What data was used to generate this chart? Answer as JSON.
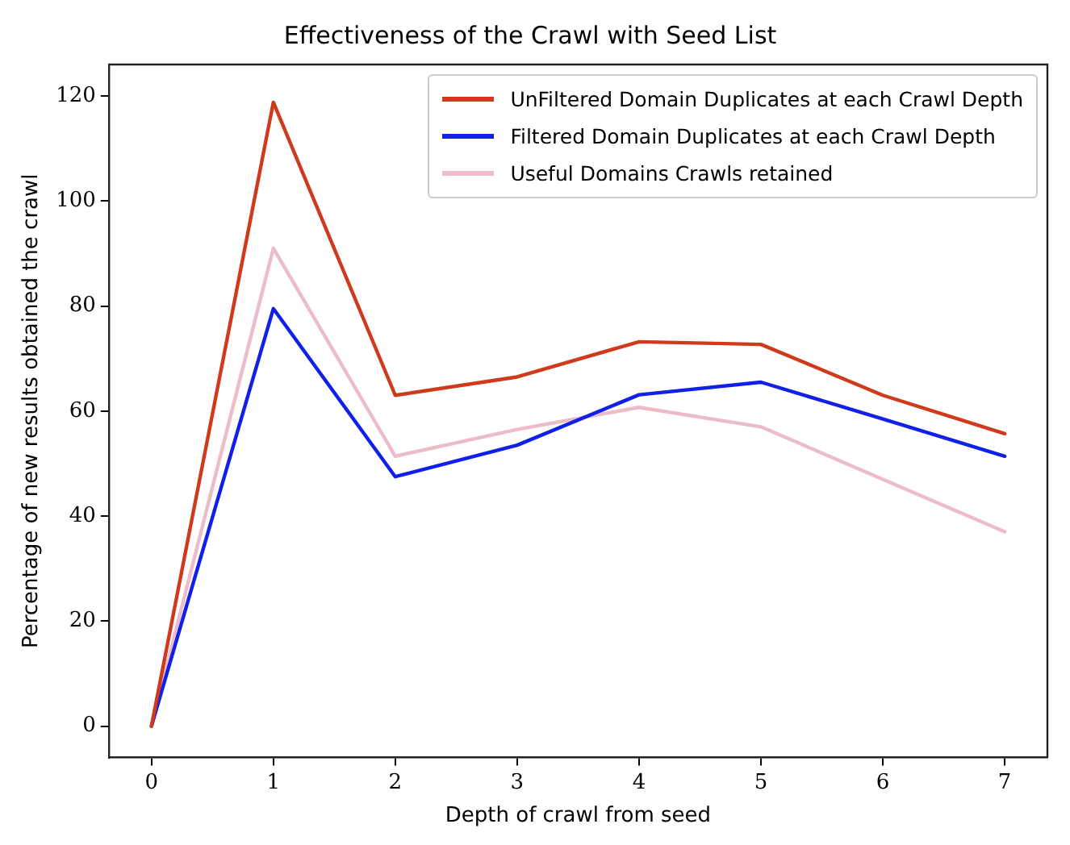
{
  "chart_data": {
    "type": "line",
    "title": "Effectiveness of the Crawl with Seed List",
    "xlabel": "Depth of crawl from seed",
    "ylabel": "Percentage of new results obtained the crawl",
    "x": [
      0,
      1,
      2,
      3,
      4,
      5,
      6,
      7
    ],
    "series": [
      {
        "name": "UnFiltered Domain Duplicates at each Crawl Depth",
        "color": "#d03a1c",
        "values": [
          0,
          118.8,
          63,
          66.5,
          73.2,
          72.7,
          63,
          55.7
        ]
      },
      {
        "name": "Filtered Domain Duplicates at each Crawl Depth",
        "color": "#1020e8",
        "values": [
          0,
          79.5,
          47.5,
          53.5,
          63.1,
          65.5,
          58.5,
          51.4
        ]
      },
      {
        "name": "Useful Domains Crawls retained",
        "color": "#ecbcc8",
        "values": [
          0,
          91,
          51.4,
          56.5,
          60.7,
          57,
          47,
          37
        ]
      }
    ],
    "xlim": [
      -0.35,
      7.35
    ],
    "xticks": [
      0,
      1,
      2,
      3,
      4,
      5,
      6,
      7
    ],
    "ylim": [
      -6,
      126
    ],
    "yticks": [
      0,
      20,
      40,
      60,
      80,
      100,
      120
    ],
    "grid": false,
    "legend": "top right",
    "marker": "none",
    "line_style": "solid"
  }
}
